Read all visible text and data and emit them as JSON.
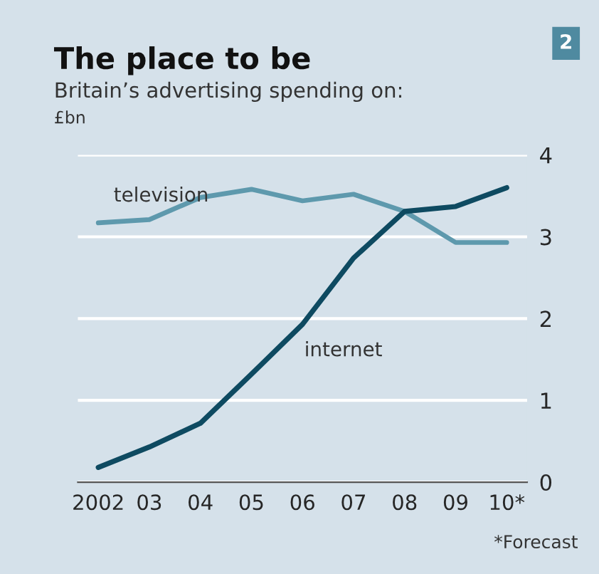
{
  "chart_data": {
    "type": "line",
    "title": "The place to be",
    "subtitle": "Britain’s advertising spending on:",
    "ylabel": "£bn",
    "categories": [
      "2002",
      "03",
      "04",
      "05",
      "06",
      "07",
      "08",
      "09",
      "10*"
    ],
    "series": [
      {
        "name": "television",
        "color": "#5e99ad",
        "values": [
          3.17,
          3.21,
          3.48,
          3.58,
          3.44,
          3.52,
          3.31,
          2.93,
          2.93
        ]
      },
      {
        "name": "internet",
        "color": "#0e4a61",
        "values": [
          0.18,
          0.43,
          0.72,
          1.32,
          1.93,
          2.74,
          3.31,
          3.37,
          3.6
        ]
      }
    ],
    "ylim": [
      0,
      4
    ],
    "yticks": [
      0,
      1,
      2,
      3,
      4
    ],
    "grid": "y",
    "legend": false,
    "marker": "none",
    "line_style": "solid",
    "annotations": [
      "*Forecast",
      "2"
    ]
  }
}
